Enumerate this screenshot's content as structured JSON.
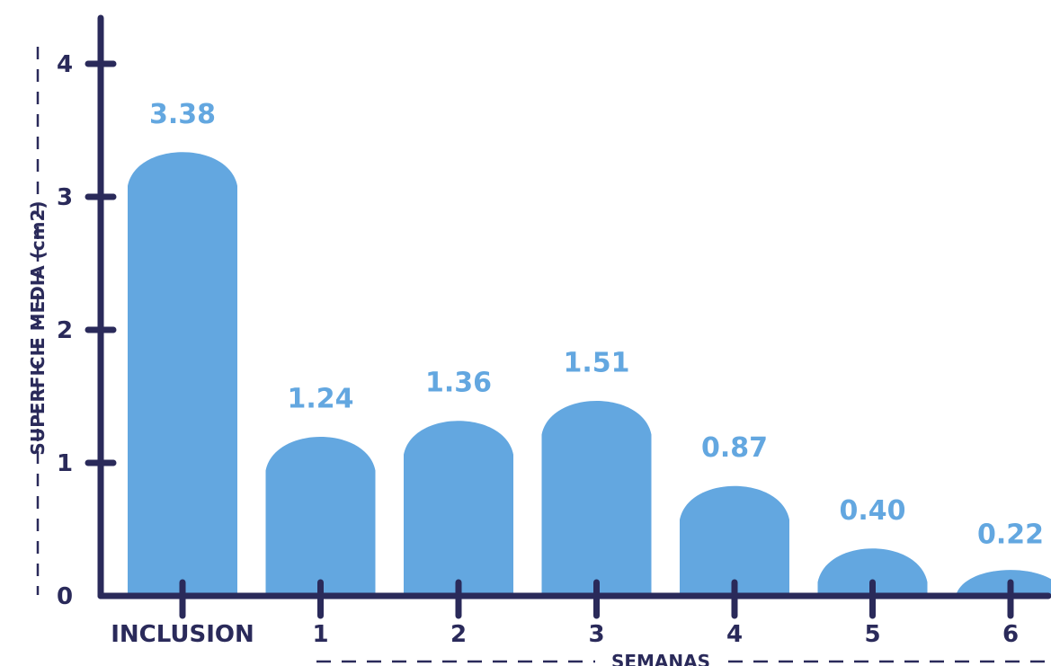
{
  "chart_data": {
    "type": "bar",
    "categories": [
      "INCLUSION",
      "1",
      "2",
      "3",
      "4",
      "5",
      "6"
    ],
    "values": [
      3.38,
      1.24,
      1.36,
      1.51,
      0.87,
      0.4,
      0.22
    ],
    "value_labels": [
      "3.38",
      "1.24",
      "1.36",
      "1.51",
      "0.87",
      "0.40",
      "0.22"
    ],
    "xlabel": "SEMANAS",
    "ylabel": "SUPERFICIE MEDIA (cm2)",
    "ylim": [
      0,
      4
    ],
    "yticks": [
      "0",
      "1",
      "2",
      "3",
      "4"
    ],
    "grid": false,
    "colors": {
      "bar": "#63a7e0",
      "axis": "#2a2a5a",
      "value_label": "#63a7e0"
    }
  }
}
